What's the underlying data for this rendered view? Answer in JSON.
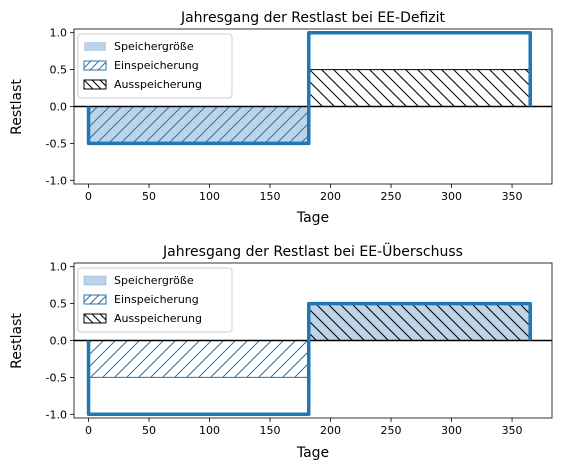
{
  "colors": {
    "series": "#1f77b4",
    "fill": "#bcd3e8",
    "black": "#000000",
    "legend_border": "#cccccc"
  },
  "chart_data": [
    {
      "type": "area",
      "title": "Jahresgang der Restlast bei EE-Defizit",
      "xlabel": "Tage",
      "ylabel": "Restlast",
      "xlim": [
        -12,
        383
      ],
      "ylim": [
        -1.05,
        1.05
      ],
      "xticks": [
        0,
        50,
        100,
        150,
        200,
        250,
        300,
        350
      ],
      "yticks": [
        -1.0,
        -0.5,
        0.0,
        0.5,
        1.0
      ],
      "grid": false,
      "legend_position": "top-left",
      "residual_load": {
        "x": [
          0,
          0,
          182,
          182,
          365,
          365
        ],
        "y": [
          0,
          -0.5,
          -0.5,
          1.0,
          1.0,
          0
        ]
      },
      "series": [
        {
          "name": "Speichergröße",
          "x": [
            0,
            182
          ],
          "y0": [
            0,
            0
          ],
          "y1": [
            -0.5,
            -0.5
          ],
          "hatch": "none"
        },
        {
          "name": "Einspeicherung",
          "x": [
            0,
            182
          ],
          "y0": [
            0,
            0
          ],
          "y1": [
            -0.5,
            -0.5
          ],
          "hatch": "forward"
        },
        {
          "name": "Ausspeicherung",
          "x": [
            182,
            365
          ],
          "y0": [
            0,
            0
          ],
          "y1": [
            0.5,
            0.5
          ],
          "hatch": "backward"
        }
      ]
    },
    {
      "type": "area",
      "title": "Jahresgang der Restlast bei EE-Überschuss",
      "xlabel": "Tage",
      "ylabel": "Restlast",
      "xlim": [
        -12,
        383
      ],
      "ylim": [
        -1.05,
        1.05
      ],
      "xticks": [
        0,
        50,
        100,
        150,
        200,
        250,
        300,
        350
      ],
      "yticks": [
        -1.0,
        -0.5,
        0.0,
        0.5,
        1.0
      ],
      "grid": false,
      "legend_position": "top-left",
      "residual_load": {
        "x": [
          0,
          0,
          182,
          182,
          365,
          365
        ],
        "y": [
          0,
          -1.0,
          -1.0,
          0.5,
          0.5,
          0
        ]
      },
      "series": [
        {
          "name": "Speichergröße",
          "x": [
            182,
            365
          ],
          "y0": [
            0,
            0
          ],
          "y1": [
            0.5,
            0.5
          ],
          "hatch": "none"
        },
        {
          "name": "Einspeicherung",
          "x": [
            0,
            182
          ],
          "y0": [
            0,
            0
          ],
          "y1": [
            -0.5,
            -0.5
          ],
          "hatch": "forward"
        },
        {
          "name": "Ausspeicherung",
          "x": [
            182,
            365
          ],
          "y0": [
            0,
            0
          ],
          "y1": [
            0.5,
            0.5
          ],
          "hatch": "backward"
        }
      ]
    }
  ]
}
